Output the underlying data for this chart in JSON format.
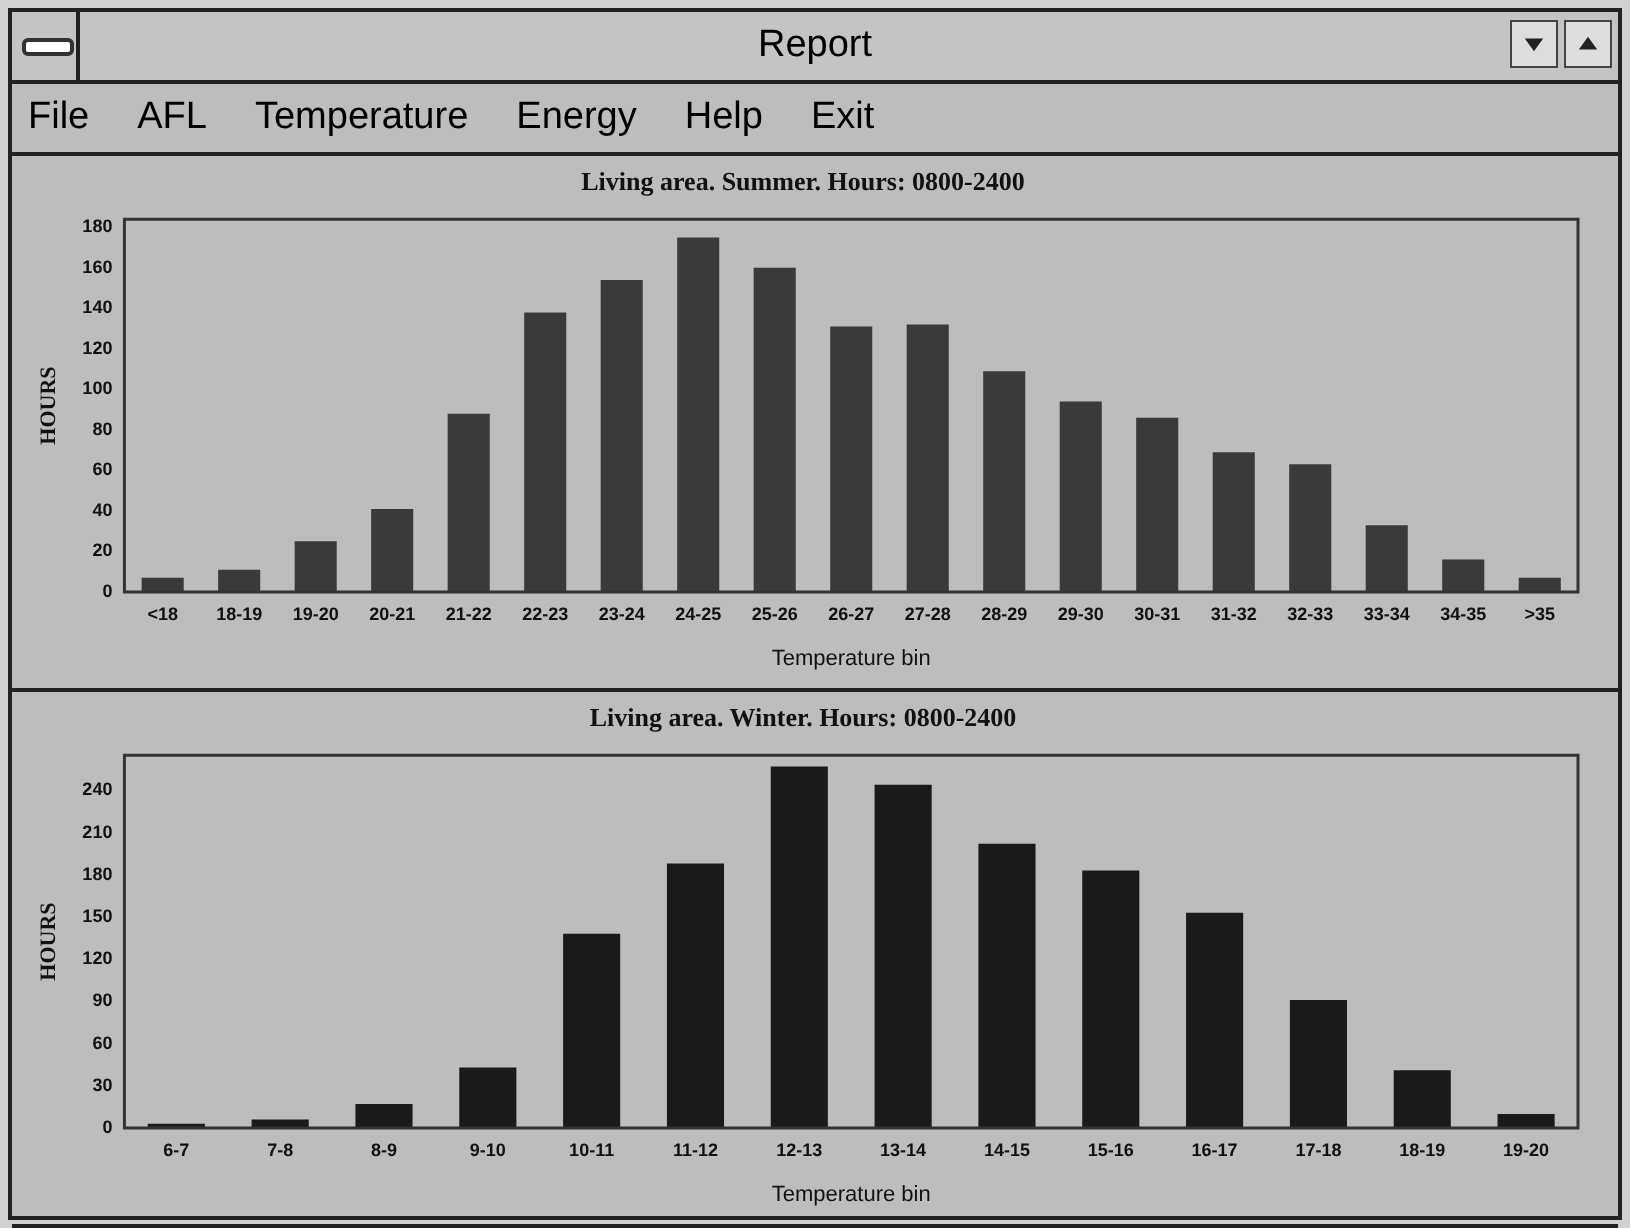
{
  "chart_data": [
    {
      "type": "other",
      "title": "Report",
      "annotations": [
        "File",
        "AFL",
        "Temperature",
        "Energy",
        "Help",
        "Exit"
      ]
    },
    {
      "type": "bar",
      "title": "Living area. Summer. Hours: 0800-2400",
      "xlabel": "Temperature bin",
      "ylabel": "HOURS",
      "categories": [
        "<18",
        "18-19",
        "19-20",
        "20-21",
        "21-22",
        "22-23",
        "23-24",
        "24-25",
        "25-26",
        "26-27",
        "27-28",
        "28-29",
        "29-30",
        "30-31",
        "31-32",
        "32-33",
        "33-34",
        "34-35",
        ">35"
      ],
      "values": [
        7,
        11,
        25,
        41,
        88,
        138,
        154,
        175,
        160,
        131,
        132,
        109,
        94,
        86,
        69,
        63,
        33,
        16,
        7
      ],
      "color": "#3a3a3a",
      "ylim": [
        0,
        184
      ],
      "yticks": [
        0,
        20,
        40,
        60,
        80,
        100,
        120,
        140,
        160,
        180
      ],
      "grid": false,
      "legend": false
    },
    {
      "type": "bar",
      "title": "Living area. Winter. Hours: 0800-2400",
      "xlabel": "Temperature bin",
      "ylabel": "HOURS",
      "categories": [
        "6-7",
        "7-8",
        "8-9",
        "9-10",
        "10-11",
        "11-12",
        "12-13",
        "13-14",
        "14-15",
        "15-16",
        "16-17",
        "17-18",
        "18-19",
        "19-20"
      ],
      "values": [
        3,
        6,
        17,
        43,
        138,
        188,
        257,
        244,
        202,
        183,
        153,
        91,
        41,
        10
      ],
      "color": "#1a1a1a",
      "ylim": [
        0,
        265
      ],
      "yticks": [
        0,
        30,
        60,
        90,
        120,
        150,
        180,
        210,
        240
      ],
      "grid": false,
      "legend": false
    }
  ]
}
